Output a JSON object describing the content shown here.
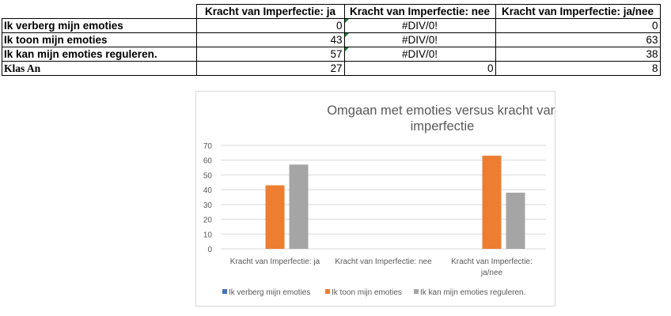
{
  "table": {
    "headers": [
      "Kracht van Imperfectie: ja",
      "Kracht van Imperfectie: nee",
      "Kracht van Imperfectie: ja/nee"
    ],
    "rows": [
      {
        "label": "Ik verberg mijn emoties",
        "values": [
          "0",
          "#DIV/0!",
          "0"
        ]
      },
      {
        "label": "Ik toon mijn emoties",
        "values": [
          "43",
          "#DIV/0!",
          "63"
        ]
      },
      {
        "label": "Ik kan mijn emoties reguleren.",
        "values": [
          "57",
          "#DIV/0!",
          "38"
        ]
      },
      {
        "label": "Klas An",
        "values": [
          "27",
          "0",
          "8"
        ]
      }
    ]
  },
  "chart_data": {
    "type": "bar",
    "title_line1": "Omgaan met emoties versus kracht van",
    "title_line2": "imperfectie",
    "categories": [
      "Kracht van Imperfectie: ja",
      "Kracht van Imperfectie: nee",
      "Kracht van Imperfectie: ja/nee"
    ],
    "category_lines": [
      [
        "Kracht van Imperfectie: ja"
      ],
      [
        "Kracht van Imperfectie: nee"
      ],
      [
        "Kracht van Imperfectie:",
        "ja/nee"
      ]
    ],
    "series": [
      {
        "name": "Ik verberg mijn emoties",
        "color": "#4472c4",
        "values": [
          0,
          null,
          0
        ]
      },
      {
        "name": "Ik toon mijn emoties",
        "color": "#ed7d31",
        "values": [
          43,
          null,
          63
        ]
      },
      {
        "name": "Ik kan mijn emoties reguleren.",
        "color": "#a5a5a5",
        "values": [
          57,
          null,
          38
        ]
      }
    ],
    "ylim": [
      0,
      70
    ],
    "yticks": [
      "0",
      "10",
      "20",
      "30",
      "40",
      "50",
      "60",
      "70"
    ],
    "grid": true,
    "legend": "bottom"
  }
}
